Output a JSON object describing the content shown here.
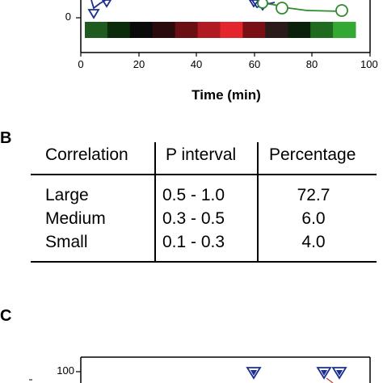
{
  "panel_a": {
    "y_tick_zero": "0",
    "x_ticks": [
      "0",
      "20",
      "40",
      "60",
      "80",
      "100"
    ],
    "x_label": "Time (min)",
    "color_bar": [
      "#1f5a1f",
      "#0b2b0b",
      "#0a0a0a",
      "#2a0a0a",
      "#6a0f14",
      "#b01a22",
      "#e3262c",
      "#7a1016",
      "#2b1a1a",
      "#0a200a",
      "#1e6a1e",
      "#33a833"
    ],
    "series_colors": {
      "triangles": "#1a2f8f",
      "circles": "#2e8b2e"
    }
  },
  "panel_b": {
    "label": "B",
    "headers": [
      "Correlation",
      "P interval",
      "Percentage"
    ],
    "rows": [
      {
        "correlation": "Large",
        "interval": "0.5 - 1.0",
        "percentage": "72.7"
      },
      {
        "correlation": "Medium",
        "interval": "0.3 - 0.5",
        "percentage": "6.0"
      },
      {
        "correlation": "Small",
        "interval": "0.1 - 0.3",
        "percentage": "4.0"
      }
    ]
  },
  "panel_c": {
    "label": "C",
    "y_tick_100": "100"
  }
}
